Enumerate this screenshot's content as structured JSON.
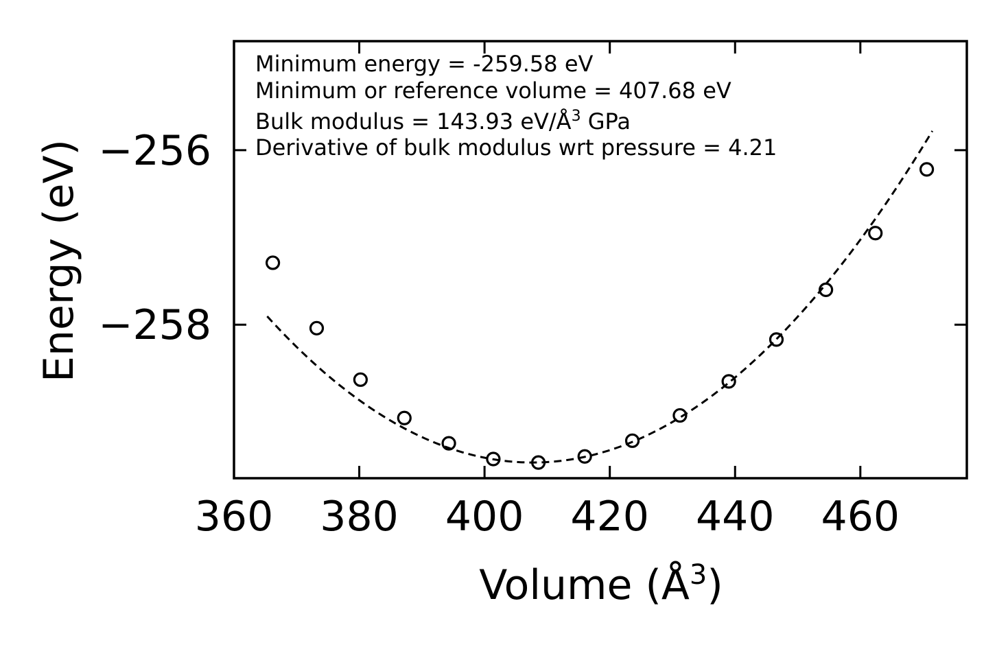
{
  "chart_data": {
    "type": "scatter",
    "xlabel": "Volume (Å",
    "xlabel_sup": "3",
    "xlabel_close": ")",
    "ylabel": "Energy (eV)",
    "xlim": [
      360,
      477
    ],
    "ylim": [
      -259.76,
      -254.75
    ],
    "xticks": [
      360,
      380,
      400,
      420,
      440,
      460
    ],
    "xtick_labels": [
      "360",
      "380",
      "400",
      "420",
      "440",
      "460"
    ],
    "yticks": [
      -256,
      -258
    ],
    "ytick_labels": [
      "−256",
      "−258"
    ],
    "grid": false,
    "series": [
      {
        "style": "open-circle-markers",
        "color": "#000000",
        "x": [
          366.2,
          373.2,
          380.2,
          387.2,
          394.3,
          401.4,
          408.6,
          416.0,
          423.6,
          431.2,
          439.0,
          446.6,
          454.5,
          462.4,
          470.6
        ],
        "y": [
          -257.29,
          -258.04,
          -258.63,
          -259.07,
          -259.36,
          -259.54,
          -259.58,
          -259.51,
          -259.33,
          -259.04,
          -258.65,
          -258.17,
          -257.6,
          -256.95,
          -256.22
        ]
      },
      {
        "style": "dashed-fit-line",
        "color": "#000000",
        "fit": {
          "E0": -259.58,
          "V0": 407.68,
          "x_start": 365.3,
          "x_end": 471.5
        }
      }
    ],
    "annotations": [
      "Minimum energy = -259.58 eV",
      "Minimum or reference volume = 407.68 eV",
      "Bulk modulus = 143.93 eV/Å",
      "Derivative of bulk modulus wrt pressure = 4.21"
    ],
    "annotation_sup": "3",
    "annotation_bulk_suffix": " GPa"
  }
}
